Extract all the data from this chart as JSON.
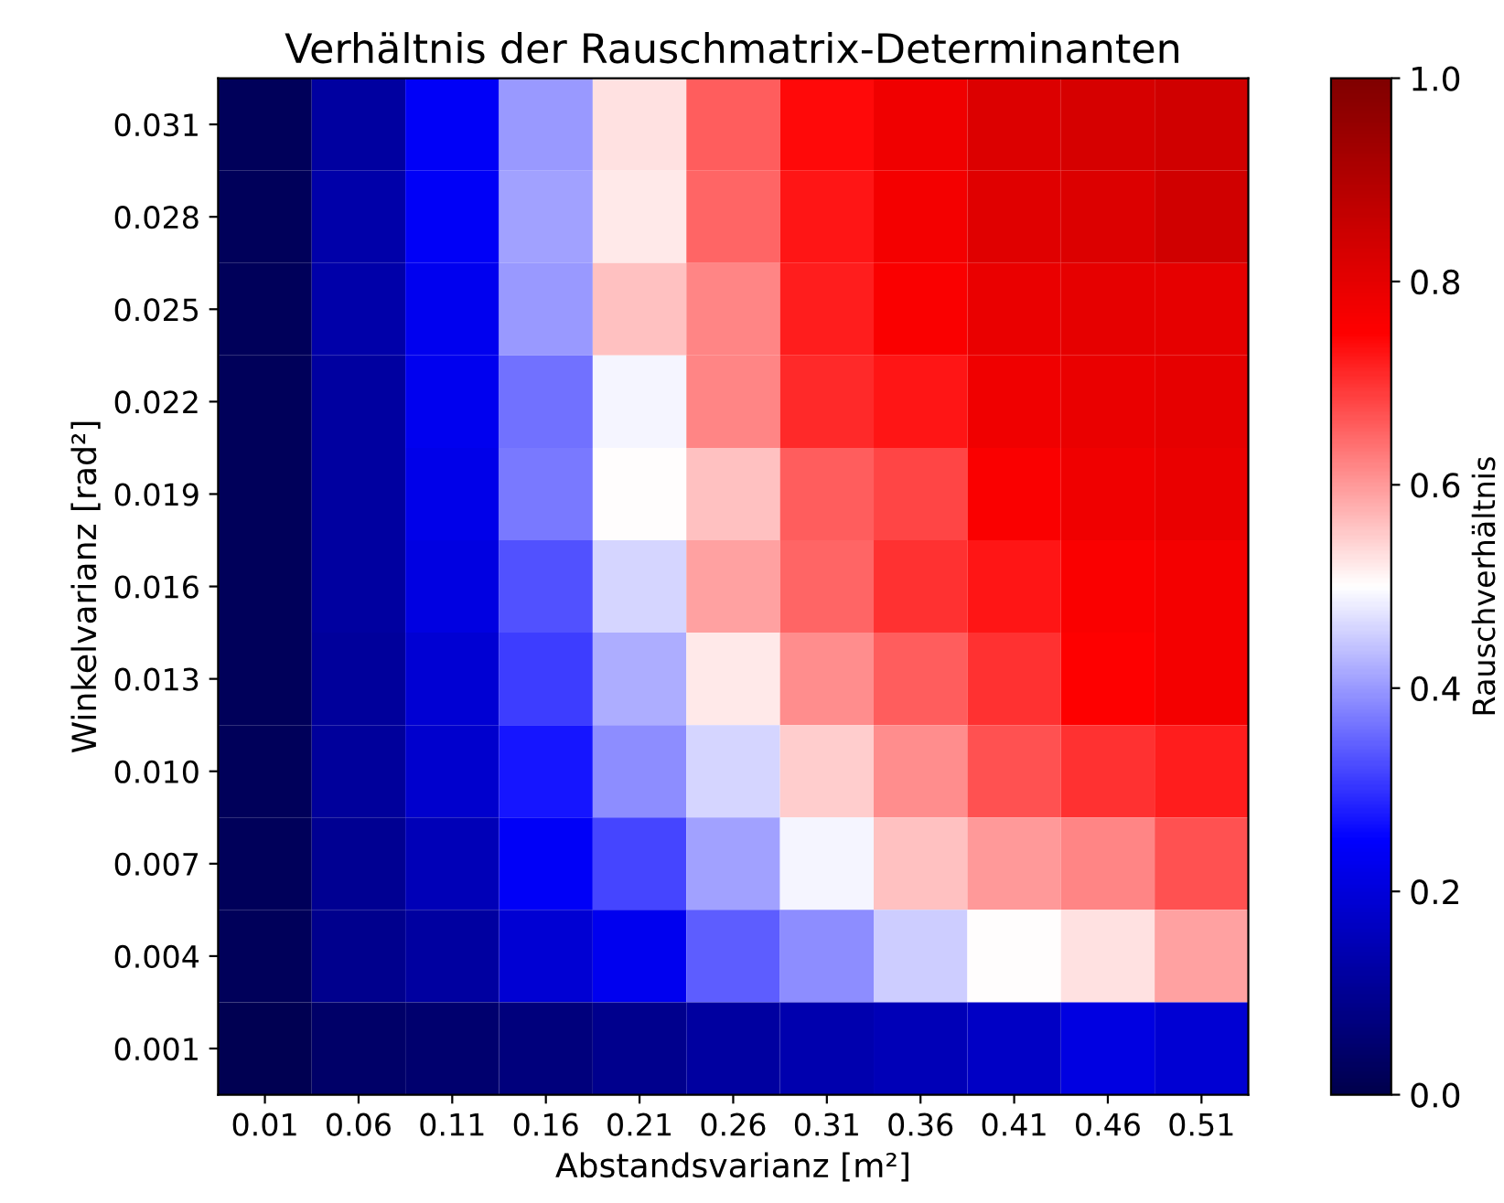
{
  "chart_data": {
    "type": "heatmap",
    "title": "Verhältnis der Rauschmatrix-Determinanten",
    "xlabel": "Abstandsvarianz [m²]",
    "ylabel": "Winkelvarianz [rad²]",
    "clabel": "Rauschverhältnis",
    "categories": [
      "0.01",
      "0.06",
      "0.11",
      "0.16",
      "0.21",
      "0.26",
      "0.31",
      "0.36",
      "0.41",
      "0.46",
      "0.51"
    ],
    "y_categories": [
      "0.031",
      "0.028",
      "0.025",
      "0.022",
      "0.019",
      "0.016",
      "0.013",
      "0.010",
      "0.007",
      "0.004",
      "0.001"
    ],
    "cells": [
      [
        0.02,
        0.12,
        0.24,
        0.4,
        0.53,
        0.66,
        0.74,
        0.78,
        0.82,
        0.83,
        0.84
      ],
      [
        0.02,
        0.13,
        0.24,
        0.41,
        0.52,
        0.65,
        0.73,
        0.77,
        0.81,
        0.82,
        0.84
      ],
      [
        0.02,
        0.13,
        0.23,
        0.4,
        0.56,
        0.62,
        0.72,
        0.76,
        0.79,
        0.8,
        0.8
      ],
      [
        0.02,
        0.12,
        0.23,
        0.36,
        0.49,
        0.62,
        0.71,
        0.73,
        0.78,
        0.79,
        0.8
      ],
      [
        0.02,
        0.12,
        0.22,
        0.37,
        0.5,
        0.56,
        0.66,
        0.68,
        0.76,
        0.78,
        0.79
      ],
      [
        0.02,
        0.12,
        0.21,
        0.33,
        0.46,
        0.59,
        0.65,
        0.7,
        0.73,
        0.76,
        0.77
      ],
      [
        0.02,
        0.11,
        0.19,
        0.31,
        0.42,
        0.52,
        0.61,
        0.66,
        0.7,
        0.75,
        0.77
      ],
      [
        0.02,
        0.11,
        0.18,
        0.27,
        0.39,
        0.46,
        0.55,
        0.61,
        0.67,
        0.7,
        0.72
      ],
      [
        0.02,
        0.1,
        0.15,
        0.24,
        0.32,
        0.41,
        0.49,
        0.56,
        0.6,
        0.62,
        0.67
      ],
      [
        0.02,
        0.09,
        0.12,
        0.19,
        0.23,
        0.34,
        0.39,
        0.45,
        0.5,
        0.53,
        0.59
      ],
      [
        0.01,
        0.04,
        0.05,
        0.07,
        0.09,
        0.12,
        0.14,
        0.15,
        0.17,
        0.21,
        0.19
      ]
    ],
    "clim": [
      0,
      1
    ],
    "cticks": [
      {
        "value": 0,
        "label": "0.0"
      },
      {
        "value": 0.2,
        "label": "0.2"
      },
      {
        "value": 0.4,
        "label": "0.4"
      },
      {
        "value": 0.6,
        "label": "0.6"
      },
      {
        "value": 0.8,
        "label": "0.8"
      },
      {
        "value": 1,
        "label": "1.0"
      }
    ]
  }
}
